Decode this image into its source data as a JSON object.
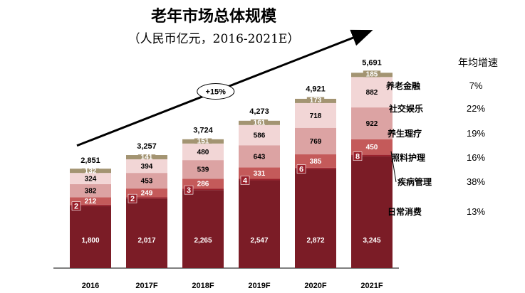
{
  "chart_data": {
    "type": "bar",
    "stacked": true,
    "title": "老年市场总体规模",
    "subtitle": "（人民币亿元，2016-2021E）",
    "categories": [
      "2016",
      "2017F",
      "2018F",
      "2019F",
      "2020F",
      "2021F"
    ],
    "totals": [
      "2,851",
      "3,257",
      "3,724",
      "4,273",
      "4,921",
      "5,691"
    ],
    "series": [
      {
        "name": "日常消费",
        "values": [
          1800,
          2017,
          2265,
          2547,
          2872,
          3245
        ],
        "labels": [
          "1,800",
          "2,017",
          "2,265",
          "2,547",
          "2,872",
          "3,245"
        ],
        "color": "#7b1c26",
        "label_color": "#ffffff"
      },
      {
        "name": "疾病管理",
        "values": [
          2,
          2,
          3,
          4,
          6,
          8
        ],
        "labels": [
          "2",
          "2",
          "3",
          "4",
          "6",
          "8"
        ],
        "color": "#9a1f2a",
        "label_color": "#ffffff"
      },
      {
        "name": "照料护理",
        "values": [
          212,
          249,
          286,
          331,
          385,
          450
        ],
        "labels": [
          "212",
          "249",
          "286",
          "331",
          "385",
          "450"
        ],
        "color": "#c45a5a",
        "label_color": "#ffffff"
      },
      {
        "name": "养生理疗",
        "values": [
          382,
          453,
          539,
          643,
          769,
          922
        ],
        "labels": [
          "382",
          "453",
          "539",
          "643",
          "769",
          "922"
        ],
        "color": "#dca3a3",
        "label_color": "#000000"
      },
      {
        "name": "社交娱乐",
        "values": [
          324,
          394,
          480,
          586,
          718,
          882
        ],
        "labels": [
          "324",
          "394",
          "480",
          "586",
          "718",
          "882"
        ],
        "color": "#f2d6d6",
        "label_color": "#000000"
      },
      {
        "name": "养老金融",
        "values": [
          132,
          141,
          151,
          161,
          173,
          185
        ],
        "labels": [
          "132",
          "141",
          "151",
          "161",
          "173",
          "185"
        ],
        "color": "#a39472",
        "label_color": "#ffffff"
      }
    ],
    "growth_header": "年均增速",
    "growth": [
      {
        "name": "养老金融",
        "rate": "7%"
      },
      {
        "name": "社交娱乐",
        "rate": "22%"
      },
      {
        "name": "养生理疗",
        "rate": "19%"
      },
      {
        "name": "照料护理",
        "rate": "16%"
      },
      {
        "name": "疾病管理",
        "rate": "38%"
      },
      {
        "name": "日常消费",
        "rate": "13%"
      }
    ],
    "cagr_annotation": "+15%",
    "ylim": [
      0,
      6000
    ],
    "grid": false,
    "legend": "right"
  }
}
